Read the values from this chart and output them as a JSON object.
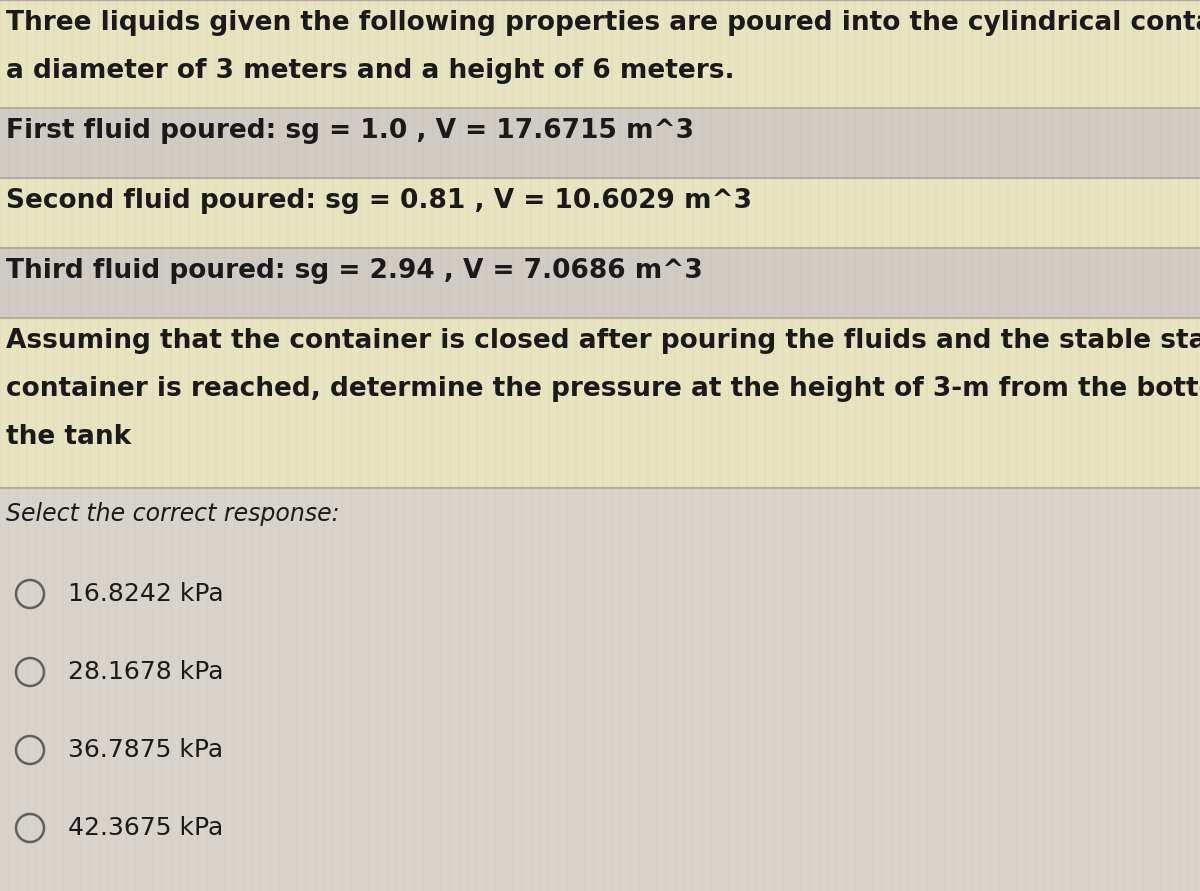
{
  "bg_color": "#d8d4cc",
  "row_yellow": "#e8e4c0",
  "row_gray": "#d0ccc4",
  "separator_color": "#b0aca4",
  "text_color": "#1a1a1a",
  "radio_color": "#606060",
  "title_line1": "Three liquids given the following properties are poured into the cylindrical container with",
  "title_line2": "a diameter of 3 meters and a height of 6 meters.",
  "fluid1": "First fluid poured: sg = 1.0 , V = 17.6715 m^3",
  "fluid2": "Second fluid poured: sg = 0.81 , V = 10.6029 m^3",
  "fluid3": "Third fluid poured: sg = 2.94 , V = 7.0686 m^3",
  "assume_line1": "Assuming that the container is closed after pouring the fluids and the stable state in the",
  "assume_line2": "container is reached, determine the pressure at the height of 3-m from the bottom of",
  "assume_line3": "the tank",
  "select_text": "Select the correct response:",
  "options": [
    "16.8242 kPa",
    "28.1678 kPa",
    "36.7875 kPa",
    "42.3675 kPa"
  ],
  "font_size_main": 19,
  "font_size_select": 17,
  "font_size_options": 18
}
